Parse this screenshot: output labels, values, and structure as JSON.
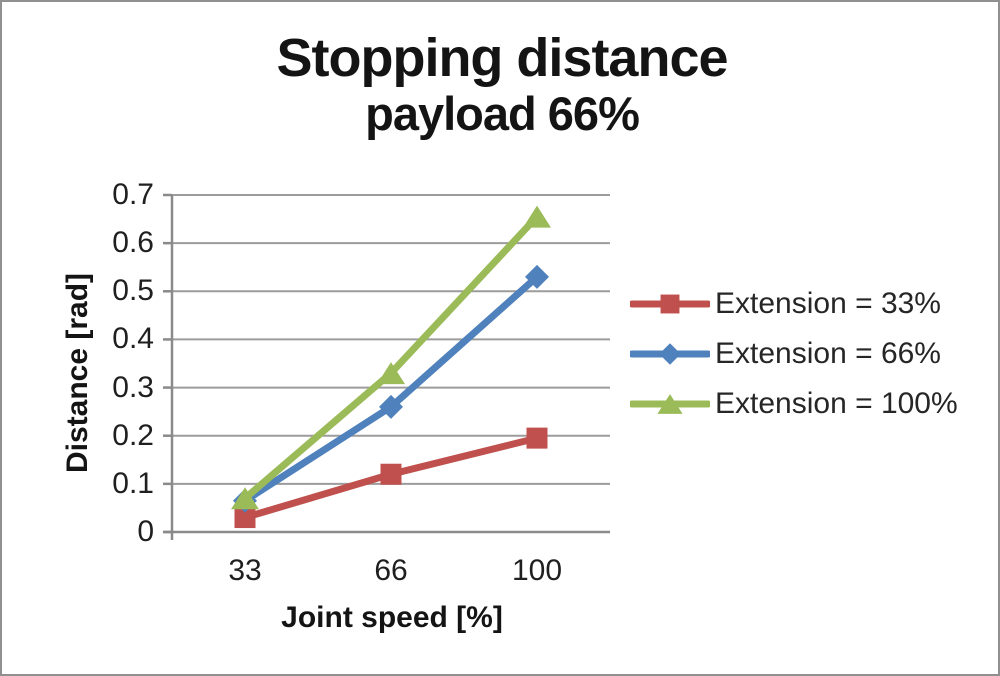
{
  "chart_data": {
    "type": "line",
    "title": "Stopping distance",
    "subtitle": "payload 66%",
    "xlabel": "Joint speed [%]",
    "ylabel": "Distance [rad]",
    "categories": [
      "33",
      "66",
      "100"
    ],
    "x_values": [
      33,
      66,
      100
    ],
    "yticks": [
      "0",
      "0.1",
      "0.2",
      "0.3",
      "0.4",
      "0.5",
      "0.6",
      "0.7"
    ],
    "ylim": [
      0,
      0.7
    ],
    "grid": true,
    "legend_position": "right",
    "series": [
      {
        "name": "Extension = 33%",
        "marker": "square",
        "color": "#C0504D",
        "values": [
          0.03,
          0.12,
          0.195
        ]
      },
      {
        "name": "Extension = 66%",
        "marker": "diamond",
        "color": "#4F81BD",
        "values": [
          0.065,
          0.26,
          0.53
        ]
      },
      {
        "name": "Extension = 100%",
        "marker": "triangle",
        "color": "#9BBB59",
        "values": [
          0.07,
          0.33,
          0.655
        ]
      }
    ]
  },
  "palette": {
    "background": "#ffffff",
    "border": "#909090",
    "gridline": "#9c9c9c",
    "axis": "#8a8a8a",
    "title_text": "#141414",
    "tick_text": "#1f1f1f",
    "legend_text": "#262626"
  }
}
